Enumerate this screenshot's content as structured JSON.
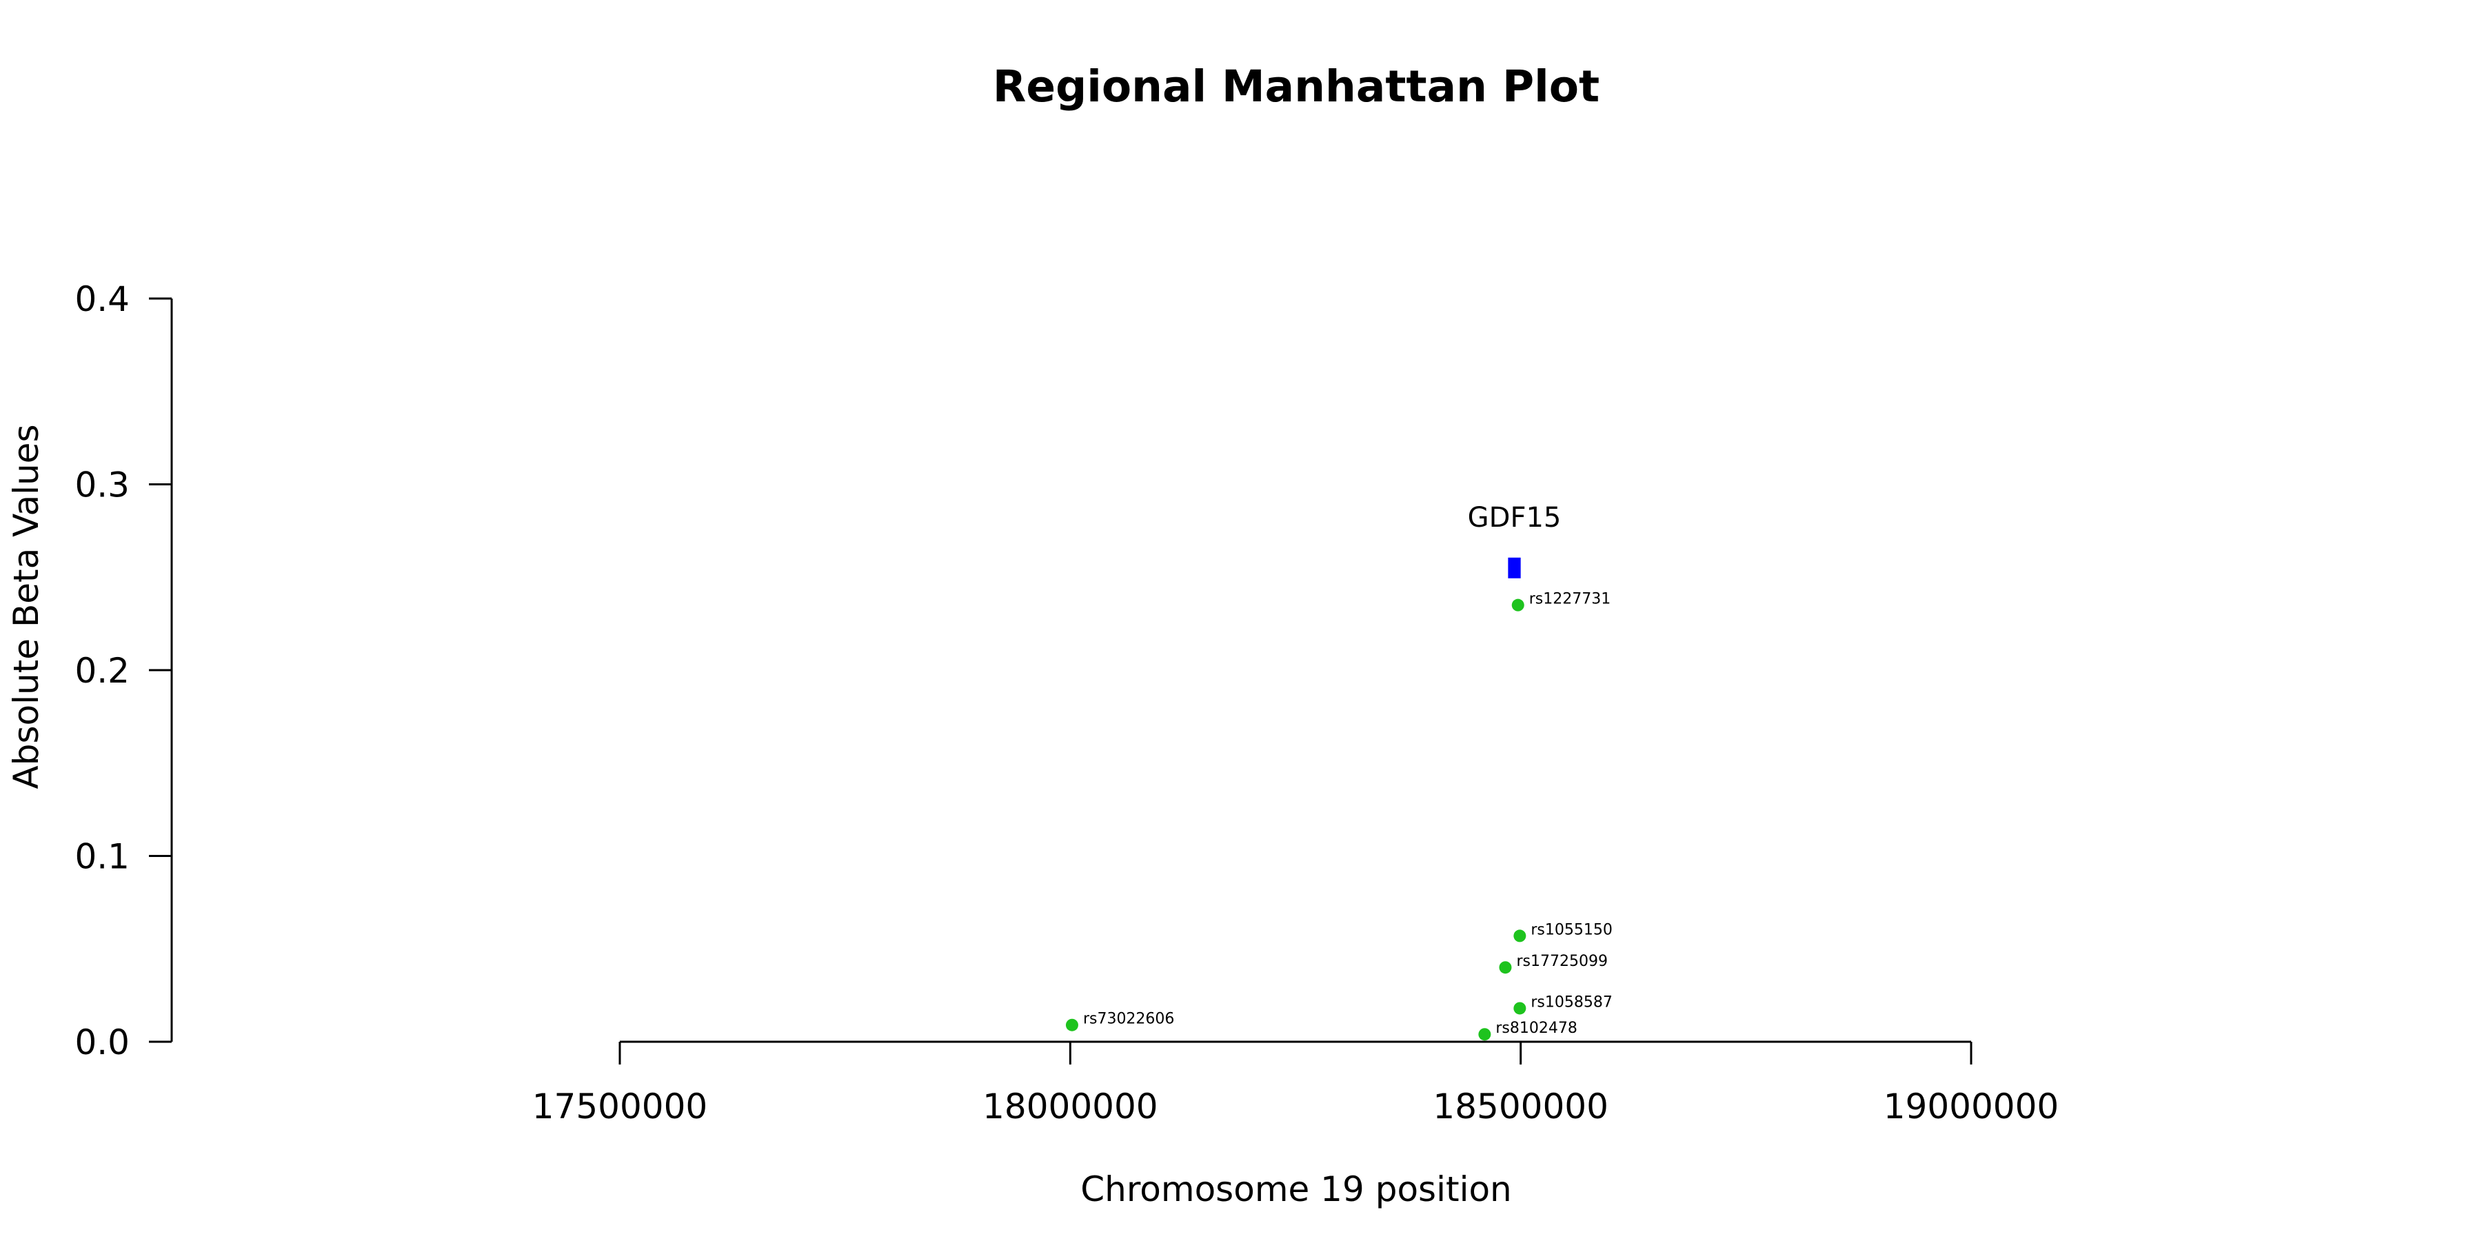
{
  "chart_data": {
    "type": "scatter",
    "title": "Regional Manhattan Plot",
    "xlabel": "Chromosome 19 position",
    "ylabel": "Absolute Beta Values",
    "xlim": [
      17500000,
      19000000
    ],
    "ylim": [
      0,
      0.4
    ],
    "x_ticks": [
      17500000,
      18000000,
      18500000,
      19000000
    ],
    "y_ticks": [
      0.0,
      0.1,
      0.2,
      0.3,
      0.4
    ],
    "x_tick_labels": [
      "17500000",
      "18000000",
      "18500000",
      "19000000"
    ],
    "y_tick_labels": [
      "0.0",
      "0.1",
      "0.2",
      "0.3",
      "0.4"
    ],
    "grid": false,
    "point_color": "#1ec31e",
    "gene_color": "#0000ff",
    "points": [
      {
        "label": "rs1227731",
        "x": 18497000,
        "y": 0.235
      },
      {
        "label": "rs1055150",
        "x": 18499000,
        "y": 0.057
      },
      {
        "label": "rs17725099",
        "x": 18483000,
        "y": 0.04
      },
      {
        "label": "rs1058587",
        "x": 18499000,
        "y": 0.018
      },
      {
        "label": "rs8102478",
        "x": 18460000,
        "y": 0.004
      },
      {
        "label": "rs73022606",
        "x": 18002000,
        "y": 0.009
      }
    ],
    "genes": [
      {
        "name": "GDF15",
        "start": 18486000,
        "end": 18500000,
        "y": 0.255
      }
    ]
  }
}
